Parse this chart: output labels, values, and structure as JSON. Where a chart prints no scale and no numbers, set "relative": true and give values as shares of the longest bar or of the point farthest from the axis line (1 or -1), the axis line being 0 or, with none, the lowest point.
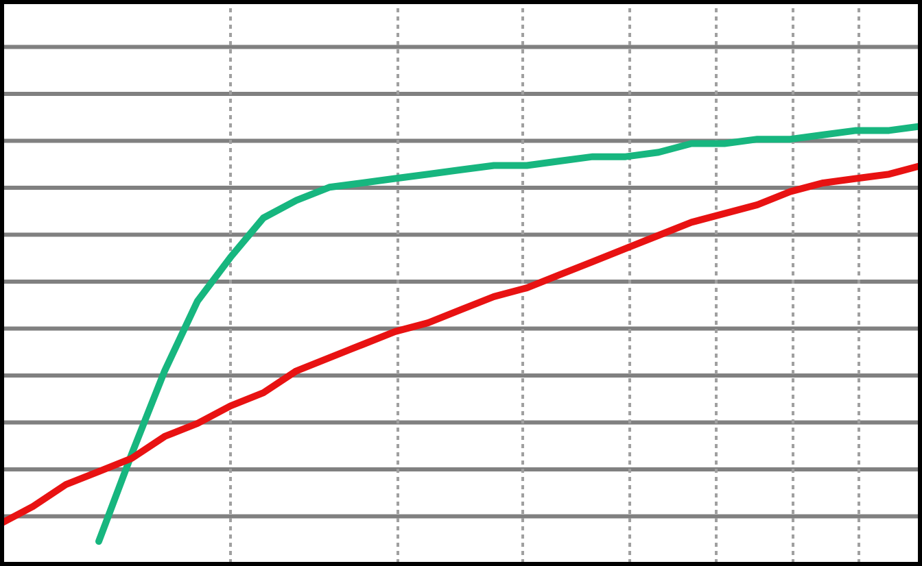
{
  "chart_data": {
    "type": "line",
    "relative": true,
    "grid": true,
    "categories": [
      null,
      null,
      null,
      null,
      null,
      null,
      null,
      null,
      null,
      null,
      null,
      null,
      null,
      null,
      null,
      null,
      null,
      null,
      null,
      null,
      null,
      null,
      null,
      null,
      null,
      null,
      null,
      null,
      null
    ],
    "series": [
      {
        "color": "#17b67f",
        "values": [
          null,
          null,
          null,
          0.05,
          0.25,
          0.44,
          0.6,
          0.7,
          0.79,
          0.83,
          0.86,
          0.87,
          0.88,
          0.89,
          0.9,
          0.91,
          0.91,
          0.92,
          0.93,
          0.93,
          0.94,
          0.96,
          0.96,
          0.97,
          0.97,
          0.98,
          0.99,
          0.99,
          1
        ]
      },
      {
        "color": "#e81212",
        "values": [
          0.09,
          0.13,
          0.18,
          0.21,
          0.24,
          0.29,
          0.32,
          0.36,
          0.39,
          0.44,
          0.47,
          0.5,
          0.53,
          0.55,
          0.58,
          0.61,
          0.63,
          0.66,
          0.69,
          0.72,
          0.75,
          0.78,
          0.8,
          0.82,
          0.85,
          0.87,
          0.88,
          0.89,
          0.91
        ]
      }
    ]
  }
}
